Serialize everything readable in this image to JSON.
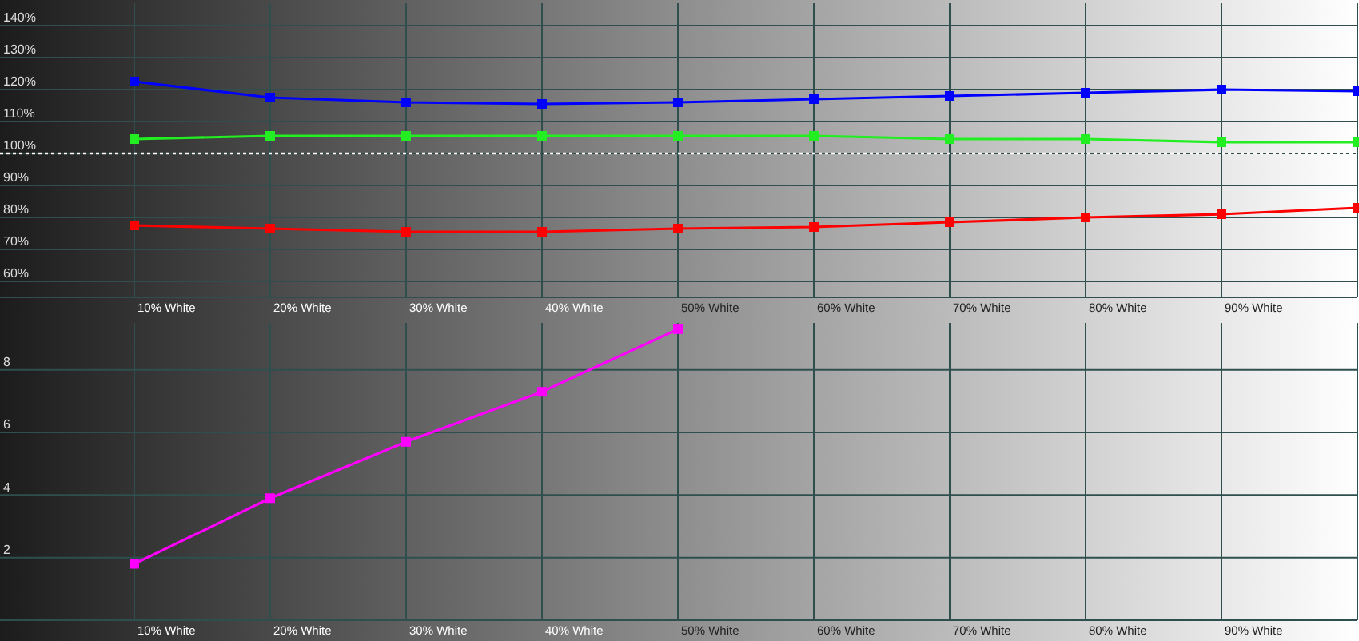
{
  "chart_data": [
    {
      "type": "line",
      "categories": [
        "10% White",
        "20% White",
        "30% White",
        "40% White",
        "50% White",
        "60% White",
        "70% White",
        "80% White",
        "90% White",
        null
      ],
      "series": [
        {
          "color": "#0000ff",
          "values": [
            122.5,
            117.5,
            116,
            115.5,
            116,
            117,
            118,
            119,
            120,
            119.5
          ]
        },
        {
          "color": "#22ee22",
          "values": [
            104.5,
            105.5,
            105.5,
            105.5,
            105.5,
            105.5,
            104.5,
            104.5,
            103.5,
            103.5
          ]
        },
        {
          "color": "#ff0000",
          "values": [
            77.5,
            76.5,
            75.5,
            75.5,
            76.5,
            77,
            78.5,
            80,
            81,
            83
          ]
        }
      ],
      "ylim": [
        55,
        147
      ],
      "yticks": [
        {
          "value": 60,
          "label": "60%"
        },
        {
          "value": 70,
          "label": "70%"
        },
        {
          "value": 80,
          "label": "80%"
        },
        {
          "value": 90,
          "label": "90%"
        },
        {
          "value": 100,
          "label": "100%"
        },
        {
          "value": 110,
          "label": "110%"
        },
        {
          "value": 120,
          "label": "120%"
        },
        {
          "value": 130,
          "label": "130%"
        },
        {
          "value": 140,
          "label": "140%"
        }
      ],
      "grid": true,
      "marker": "square",
      "line_style": "solid",
      "ref_lines": [
        {
          "axis": "y",
          "value": 100,
          "color": "#ffffff",
          "line_style": "dotted"
        }
      ]
    },
    {
      "type": "line",
      "categories": [
        "10% White",
        "20% White",
        "30% White",
        "40% White",
        "50% White",
        "60% White",
        "70% White",
        "80% White",
        "90% White",
        null
      ],
      "series": [
        {
          "color": "#ff00ff",
          "values": [
            1.8,
            3.9,
            5.7,
            7.3,
            9.3,
            null,
            null,
            null,
            null,
            null
          ]
        }
      ],
      "ylim": [
        0,
        9.5
      ],
      "yticks": [
        2,
        4,
        6,
        8
      ],
      "grid": true,
      "marker": "square",
      "line_style": "solid"
    }
  ]
}
